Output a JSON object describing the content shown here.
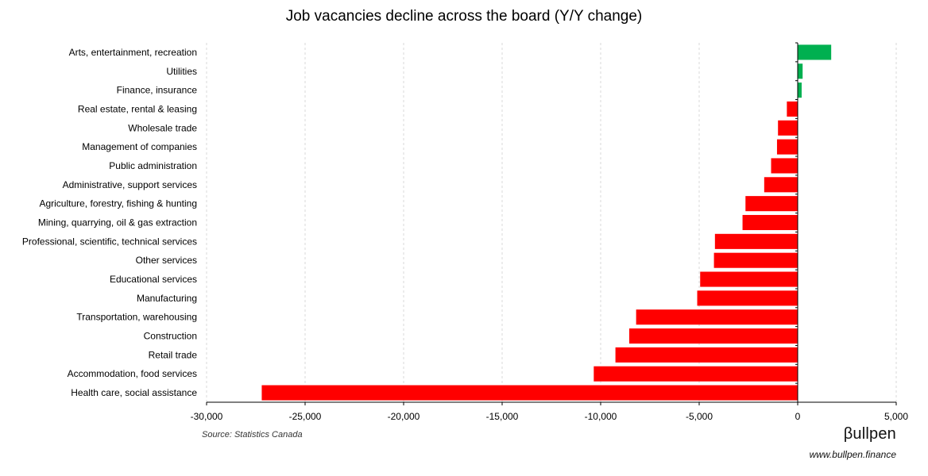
{
  "chart_data": {
    "type": "bar",
    "orientation": "horizontal",
    "title": "Job vacancies decline across the board (Y/Y change)",
    "categories": [
      "Arts, entertainment, recreation",
      "Utilities",
      "Finance, insurance",
      "Real estate, rental & leasing",
      "Wholesale trade",
      "Management of companies",
      "Public administration",
      "Administrative, support services",
      "Agriculture, forestry, fishing & hunting",
      "Mining, quarrying, oil & gas extraction",
      "Professional, scientific, technical services",
      "Other services",
      "Educational services",
      "Manufacturing",
      "Transportation, warehousing",
      "Construction",
      "Retail trade",
      "Accommodation, food services",
      "Health care, social assistance"
    ],
    "values": [
      1700,
      250,
      200,
      -550,
      -1000,
      -1050,
      -1350,
      -1700,
      -2650,
      -2800,
      -4200,
      -4250,
      -4950,
      -5100,
      -8200,
      -8550,
      -9250,
      -10350,
      -27200
    ],
    "xlim": [
      -30000,
      5000
    ],
    "xticks": [
      -30000,
      -25000,
      -20000,
      -15000,
      -10000,
      -5000,
      0,
      5000
    ],
    "xtick_labels": [
      "-30,000",
      "-25,000",
      "-20,000",
      "-15,000",
      "-10,000",
      "-5,000",
      "0",
      "5,000"
    ],
    "xlabel": "",
    "ylabel": "",
    "grid": "vertical-dashed",
    "legend": "none",
    "colors": {
      "positive": "#00b050",
      "negative": "#ff0000",
      "grid": "#d9d9d9",
      "axis": "#000000"
    }
  },
  "footer": {
    "source": "Source: Statistics Canada",
    "brand": "βullpen",
    "website": "www.bullpen.finance"
  }
}
